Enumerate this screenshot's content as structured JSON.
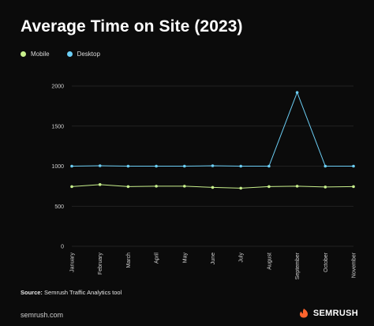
{
  "title": "Average Time on Site (2023)",
  "legend": [
    {
      "label": "Mobile",
      "color": "#c8f08c"
    },
    {
      "label": "Desktop",
      "color": "#6ccff6"
    }
  ],
  "source": {
    "label": "Source:",
    "text": "Semrush Traffic Analytics tool"
  },
  "footer_url": "semrush.com",
  "brand": {
    "name": "SEMRUSH",
    "color": "#ff642d"
  },
  "colors": {
    "gridline": "#2a2a2a",
    "axis_text": "#d0d0d0",
    "background": "#0b0b0b"
  },
  "chart_data": {
    "type": "line",
    "categories": [
      "January",
      "February",
      "March",
      "April",
      "May",
      "June",
      "July",
      "August",
      "September",
      "October",
      "November"
    ],
    "series": [
      {
        "name": "Mobile",
        "color": "#c8f08c",
        "values": [
          745,
          770,
          745,
          750,
          750,
          735,
          725,
          745,
          750,
          740,
          745
        ]
      },
      {
        "name": "Desktop",
        "color": "#6ccff6",
        "values": [
          1000,
          1005,
          1000,
          1000,
          1000,
          1005,
          1000,
          1000,
          1920,
          1000,
          1000
        ]
      }
    ],
    "yticks": [
      0,
      500,
      1000,
      1500,
      2000
    ],
    "ylim": [
      0,
      2000
    ],
    "grid": true,
    "legend_position": "top-left"
  }
}
